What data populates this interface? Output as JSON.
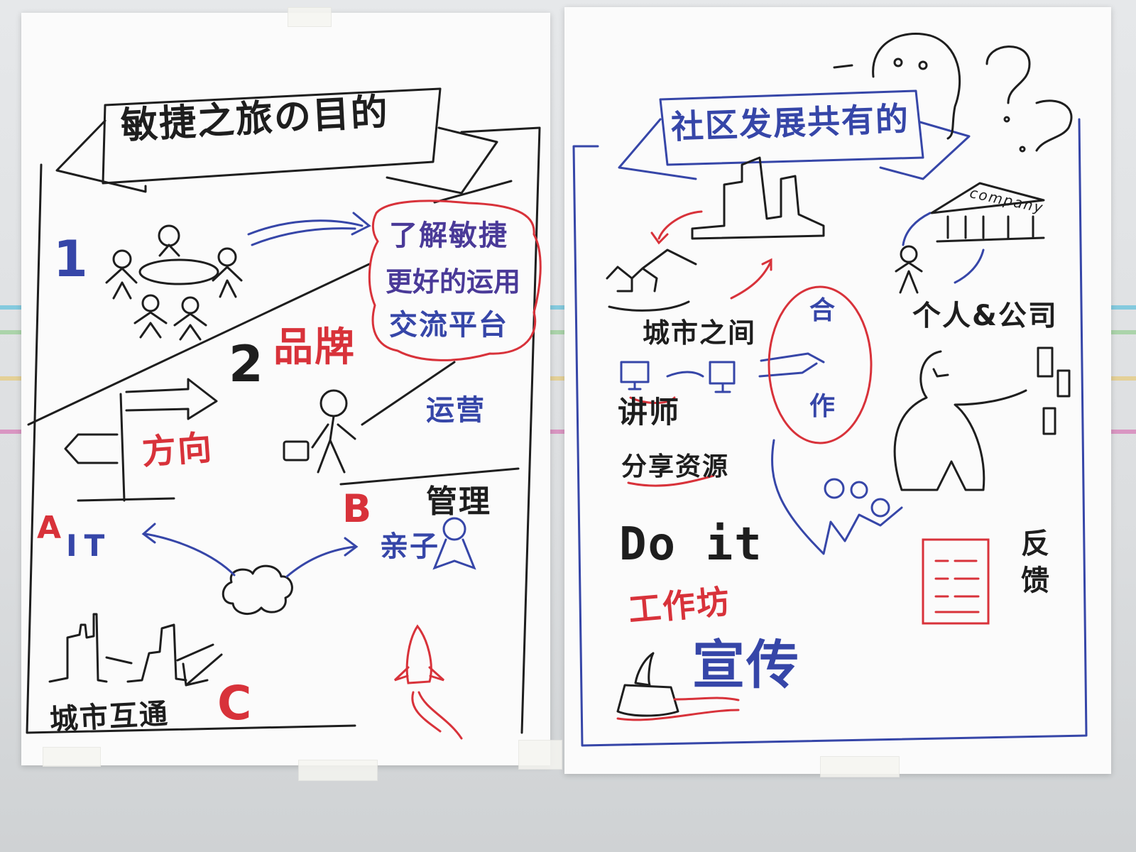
{
  "left_poster": {
    "banner_title": "敏捷之旅の目的",
    "item1_number": "1",
    "cloud_lines": [
      "了解敏捷",
      "更好的运用",
      "交流平台"
    ],
    "item2_number": "2",
    "item2_label": "品牌",
    "direction_label": "方向",
    "operations_label": "运营",
    "management_label": "管理",
    "letter_a": "A",
    "it_label": "IT",
    "letter_b": "B",
    "parent_child_label": "亲子",
    "letter_c": "C",
    "city_interop_label": "城市互通"
  },
  "right_poster": {
    "banner_title": "社区发展共有的",
    "company_label": "company",
    "person_company_label": "个人&公司",
    "between_cities_label": "城市之间",
    "cooperation_label_top": "合",
    "cooperation_label_bottom": "作",
    "lecturer_label": "讲师",
    "share_resources_label": "分享资源",
    "do_it_label": "Do it",
    "workshop_label": "工作坊",
    "promotion_label": "宣传",
    "feedback_label": "反馈"
  },
  "colors": {
    "ink_black": "#1e1e1e",
    "ink_red": "#d8323a",
    "ink_blue": "#3646a8"
  }
}
